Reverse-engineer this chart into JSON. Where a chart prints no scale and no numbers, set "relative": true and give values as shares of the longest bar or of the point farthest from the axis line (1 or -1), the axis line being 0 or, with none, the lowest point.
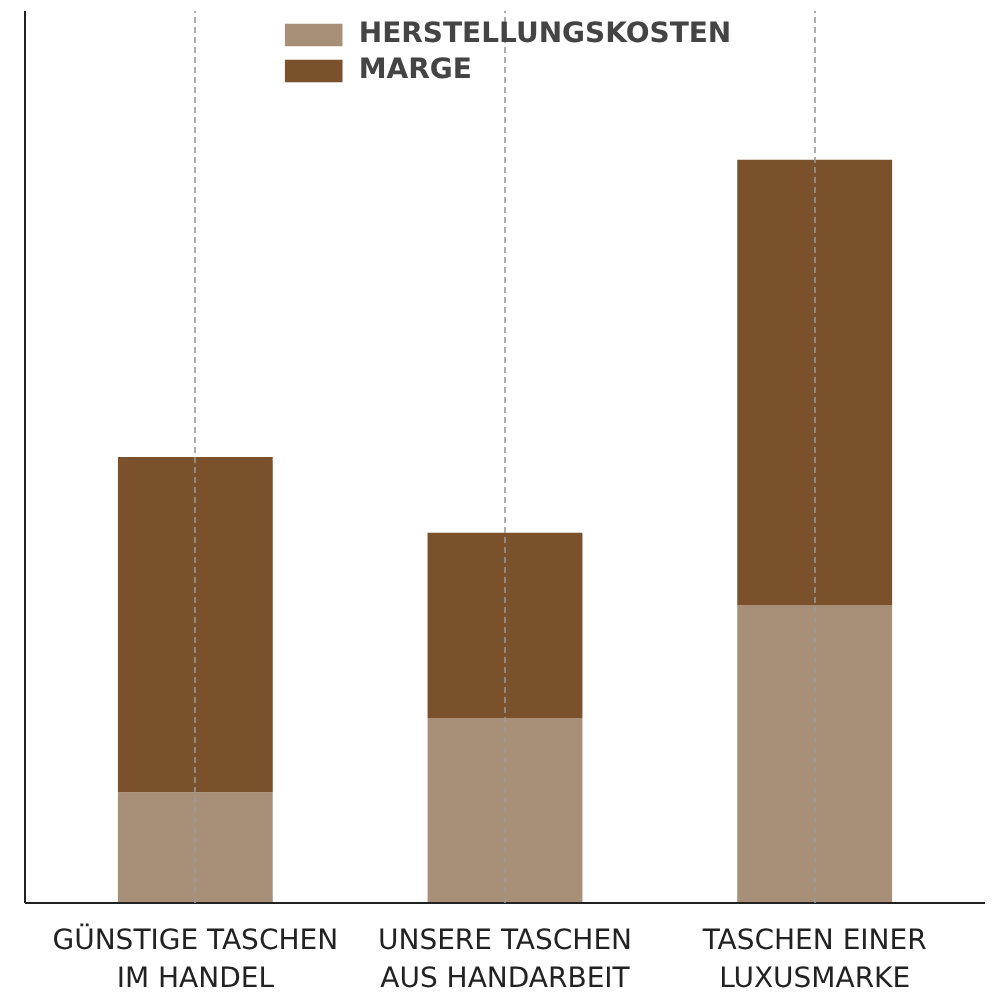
{
  "chart_data": {
    "type": "bar",
    "stacked": true,
    "relative": true,
    "categories": [
      "GÜNSTIGE TASCHEN\nIM HANDEL",
      "UNSERE TASCHEN\nAUS HANDARBEIT",
      "TASCHEN EINER\nLUXUSMARKE"
    ],
    "series": [
      {
        "name": "HERSTELLUNGSKOSTEN",
        "color": "#a89078",
        "values": [
          0.149,
          0.249,
          0.401
        ]
      },
      {
        "name": "MARGE",
        "color": "#7a512b",
        "values": [
          0.451,
          0.249,
          0.599
        ]
      }
    ],
    "grid": "x",
    "legend": "top",
    "tick_labels": "x"
  }
}
